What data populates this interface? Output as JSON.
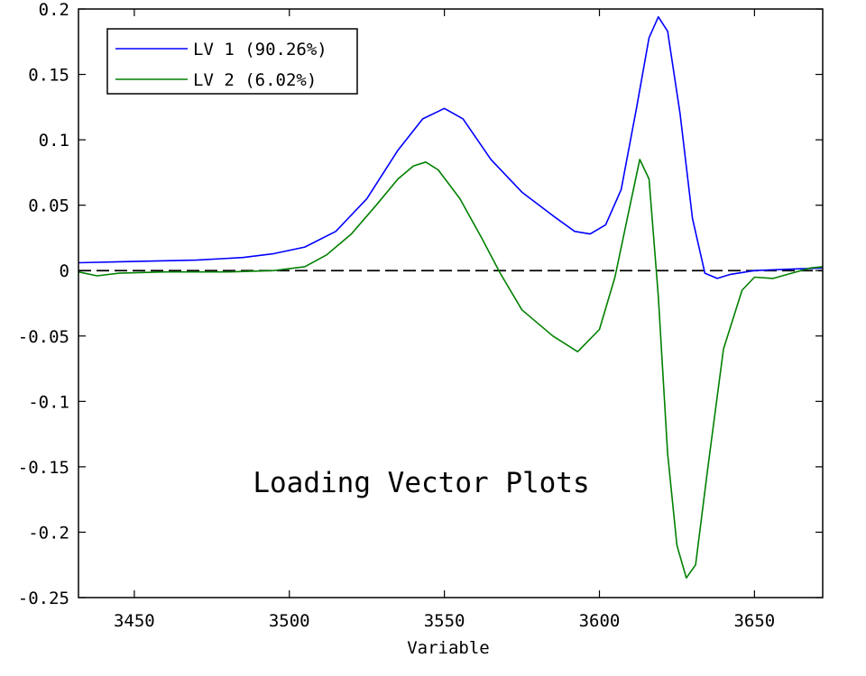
{
  "chart_data": {
    "type": "line",
    "title": "",
    "xlabel": "Variable",
    "ylabel": "",
    "annotation": "Loading Vector Plots",
    "xlim": [
      3432,
      3672
    ],
    "ylim": [
      -0.25,
      0.2
    ],
    "xticks": [
      3450,
      3500,
      3550,
      3600,
      3650
    ],
    "xtick_labels": [
      "3450",
      "3500",
      "3550",
      "3600",
      "3650"
    ],
    "yticks": [
      0.2,
      0.15,
      0.1,
      0.05,
      0,
      -0.05,
      -0.1,
      -0.15,
      -0.2,
      -0.25
    ],
    "ytick_labels": [
      "0.2",
      "0.15",
      "0.1",
      "0.05",
      "0",
      "-0.05",
      "-0.1",
      "-0.15",
      "-0.2",
      "-0.25"
    ],
    "legend_position": "top-left",
    "zero_line": true,
    "grid": false,
    "series": [
      {
        "name": "LV 1 (90.26%)",
        "color": "#0000ff",
        "x": [
          3432,
          3450,
          3470,
          3485,
          3495,
          3505,
          3515,
          3525,
          3535,
          3543,
          3550,
          3556,
          3565,
          3575,
          3585,
          3592,
          3597,
          3602,
          3607,
          3612,
          3616,
          3619,
          3622,
          3626,
          3630,
          3634,
          3638,
          3642,
          3650,
          3660,
          3672
        ],
        "y": [
          0.006,
          0.007,
          0.008,
          0.01,
          0.013,
          0.018,
          0.03,
          0.055,
          0.092,
          0.116,
          0.124,
          0.116,
          0.085,
          0.06,
          0.042,
          0.03,
          0.028,
          0.035,
          0.062,
          0.125,
          0.178,
          0.194,
          0.183,
          0.12,
          0.04,
          -0.002,
          -0.006,
          -0.003,
          0.0,
          0.001,
          0.002
        ]
      },
      {
        "name": "LV 2 (6.02%)",
        "color": "#008000",
        "x": [
          3432,
          3438,
          3445,
          3460,
          3480,
          3495,
          3505,
          3512,
          3520,
          3528,
          3535,
          3540,
          3544,
          3548,
          3555,
          3562,
          3568,
          3575,
          3585,
          3593,
          3600,
          3605,
          3609,
          3613,
          3616,
          3619,
          3622,
          3625,
          3628,
          3631,
          3635,
          3640,
          3646,
          3650,
          3656,
          3662,
          3668,
          3672
        ],
        "y": [
          -0.001,
          -0.004,
          -0.002,
          -0.001,
          -0.001,
          0.0,
          0.003,
          0.012,
          0.028,
          0.05,
          0.07,
          0.08,
          0.083,
          0.077,
          0.055,
          0.025,
          -0.002,
          -0.03,
          -0.05,
          -0.062,
          -0.045,
          -0.005,
          0.04,
          0.085,
          0.07,
          -0.02,
          -0.14,
          -0.21,
          -0.235,
          -0.225,
          -0.15,
          -0.06,
          -0.015,
          -0.005,
          -0.006,
          -0.002,
          0.002,
          0.003
        ]
      }
    ]
  }
}
